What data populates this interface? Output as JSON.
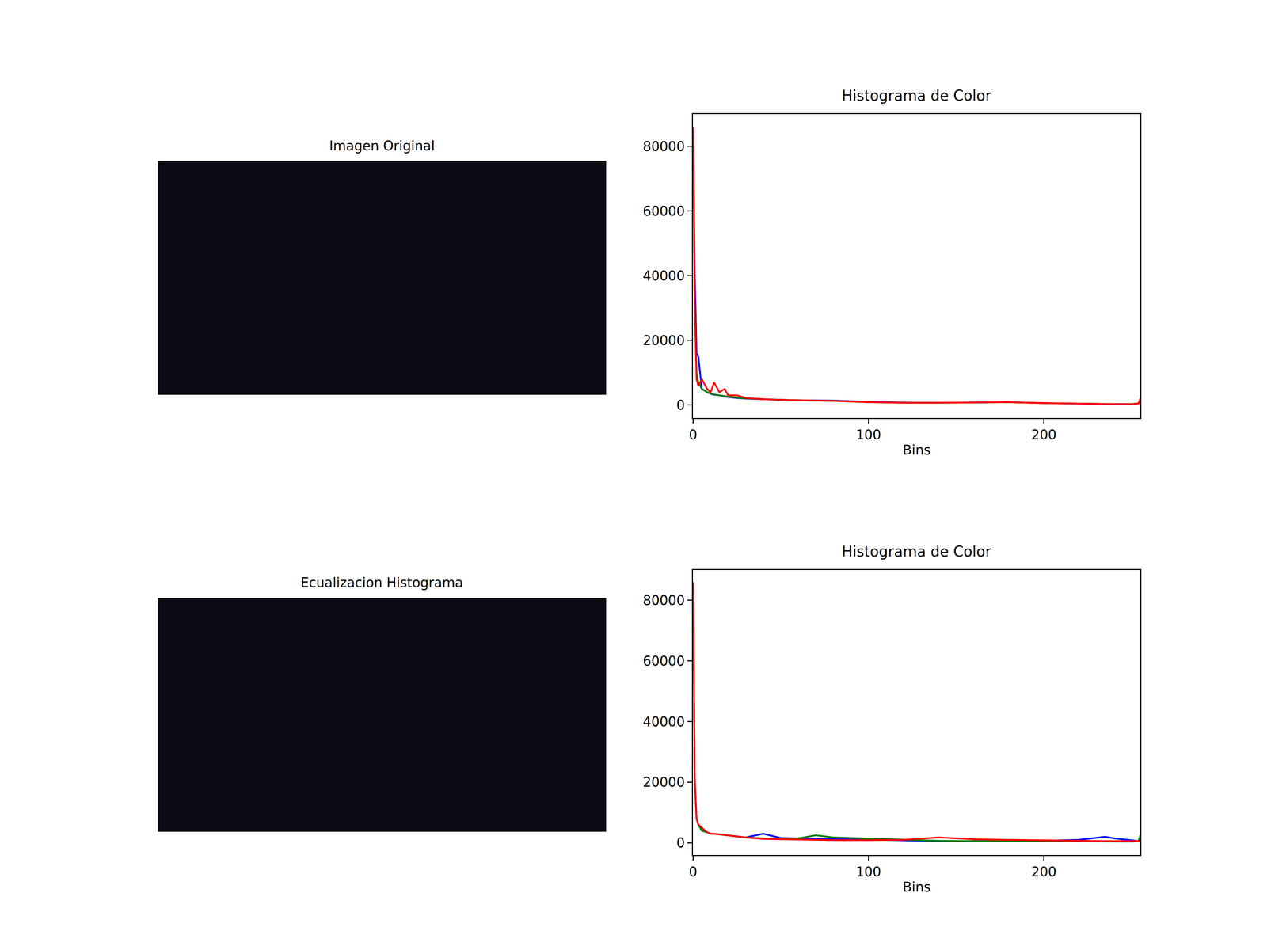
{
  "chart_data": [
    {
      "type": "image",
      "title": "Imagen Original"
    },
    {
      "type": "line",
      "title": "Histograma de Color",
      "x_label": "Bins",
      "x": [
        0,
        1,
        2,
        3,
        5,
        8,
        10,
        12,
        15,
        18,
        20,
        25,
        30,
        40,
        50,
        60,
        80,
        100,
        120,
        140,
        160,
        180,
        200,
        220,
        240,
        250,
        254,
        255
      ],
      "series": [
        {
          "name": "b",
          "color": "#0000ff",
          "values": [
            86000,
            40000,
            16000,
            15000,
            5000,
            4000,
            3500,
            3200,
            3000,
            2700,
            2500,
            2200,
            2000,
            1800,
            1600,
            1500,
            1400,
            1000,
            800,
            700,
            800,
            900,
            600,
            400,
            300,
            300,
            500,
            1500
          ]
        },
        {
          "name": "g",
          "color": "#008000",
          "values": [
            85000,
            30000,
            10000,
            7000,
            5000,
            4000,
            3600,
            3300,
            3000,
            2800,
            2600,
            2300,
            2100,
            1800,
            1600,
            1500,
            1300,
            900,
            700,
            700,
            800,
            900,
            600,
            400,
            300,
            300,
            500,
            1800
          ]
        },
        {
          "name": "r",
          "color": "#ff0000",
          "values": [
            86000,
            30000,
            8000,
            6000,
            8000,
            5000,
            4000,
            7000,
            4000,
            5000,
            3000,
            3000,
            2200,
            1800,
            1600,
            1500,
            1300,
            900,
            700,
            700,
            800,
            900,
            600,
            400,
            300,
            300,
            500,
            2000
          ]
        }
      ],
      "xlim": [
        0,
        255
      ],
      "xticks": [
        0,
        100,
        200
      ],
      "ylim": [
        -4000,
        90000
      ],
      "yticks": [
        0,
        20000,
        40000,
        60000,
        80000
      ],
      "grid": false
    },
    {
      "type": "image",
      "title": "Ecualizacion Histograma"
    },
    {
      "type": "line",
      "title": "Histograma de Color",
      "x_label": "Bins",
      "x": [
        0,
        1,
        2,
        3,
        5,
        8,
        10,
        12,
        15,
        18,
        20,
        25,
        30,
        40,
        50,
        60,
        70,
        80,
        100,
        120,
        140,
        160,
        180,
        200,
        220,
        235,
        240,
        250,
        254,
        255
      ],
      "series": [
        {
          "name": "b",
          "color": "#0000ff",
          "values": [
            86000,
            20000,
            8000,
            6000,
            4000,
            3500,
            3000,
            3000,
            2800,
            2600,
            2400,
            2000,
            1800,
            3000,
            1600,
            1500,
            1400,
            1200,
            1000,
            800,
            600,
            600,
            600,
            700,
            1000,
            2000,
            1500,
            800,
            600,
            800
          ]
        },
        {
          "name": "g",
          "color": "#008000",
          "values": [
            86000,
            20000,
            8000,
            6000,
            4000,
            3500,
            3000,
            3000,
            2800,
            2600,
            2400,
            2000,
            1800,
            1500,
            1400,
            1500,
            2500,
            1800,
            1400,
            1000,
            700,
            600,
            500,
            500,
            500,
            500,
            500,
            400,
            600,
            2500
          ]
        },
        {
          "name": "r",
          "color": "#ff0000",
          "values": [
            86000,
            20000,
            8000,
            6000,
            5000,
            3500,
            3000,
            3000,
            2800,
            2600,
            2400,
            2000,
            1800,
            1300,
            1200,
            1100,
            1000,
            900,
            900,
            1000,
            1800,
            1200,
            1000,
            800,
            700,
            600,
            600,
            500,
            500,
            600
          ]
        }
      ],
      "xlim": [
        0,
        255
      ],
      "xticks": [
        0,
        100,
        200
      ],
      "ylim": [
        -4000,
        90000
      ],
      "yticks": [
        0,
        20000,
        40000,
        60000,
        80000
      ],
      "grid": false
    }
  ]
}
